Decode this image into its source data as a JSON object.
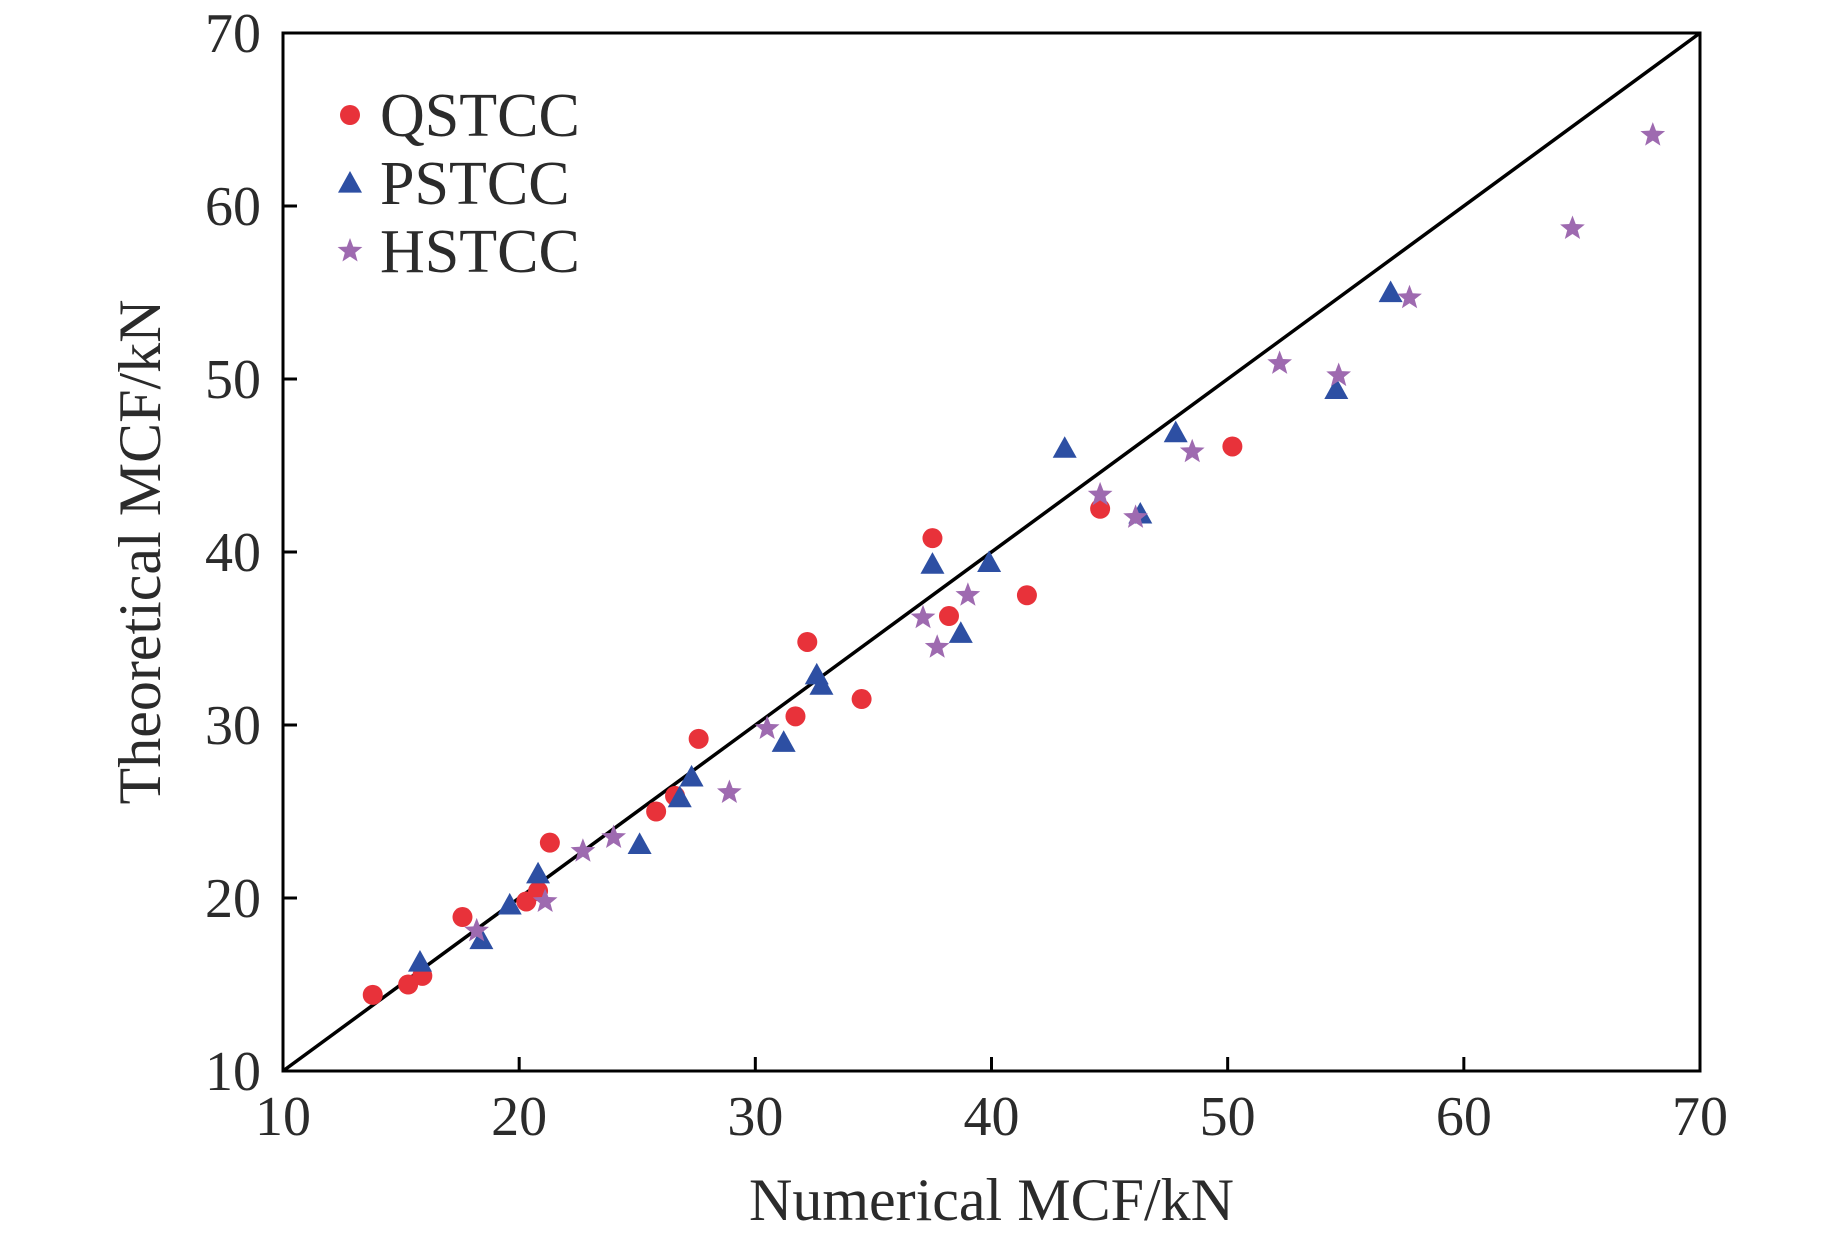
{
  "chart_data": {
    "type": "scatter",
    "title": "",
    "xlabel": "Numerical MCF/kN",
    "ylabel": "Theoretical MCF/kN",
    "xlim": [
      10,
      70
    ],
    "ylim": [
      10,
      70
    ],
    "xticks": [
      10,
      20,
      30,
      40,
      50,
      60,
      70
    ],
    "yticks": [
      10,
      20,
      30,
      40,
      50,
      60,
      70
    ],
    "grid": false,
    "legend_position": "top-left",
    "reference_line": {
      "x": [
        10,
        70
      ],
      "y": [
        10,
        70
      ],
      "color": "#000000"
    },
    "series": [
      {
        "name": "QSTCC",
        "marker": "circle",
        "color": "#e8323a",
        "points": [
          [
            13.8,
            14.4
          ],
          [
            15.3,
            15.0
          ],
          [
            15.9,
            15.5
          ],
          [
            17.6,
            18.9
          ],
          [
            20.3,
            19.8
          ],
          [
            20.8,
            20.4
          ],
          [
            21.3,
            23.2
          ],
          [
            25.8,
            25.0
          ],
          [
            26.6,
            25.9
          ],
          [
            27.6,
            29.2
          ],
          [
            31.7,
            30.5
          ],
          [
            32.2,
            34.8
          ],
          [
            34.5,
            31.5
          ],
          [
            37.5,
            40.8
          ],
          [
            38.2,
            36.3
          ],
          [
            41.5,
            37.5
          ],
          [
            44.6,
            42.5
          ],
          [
            50.2,
            46.1
          ]
        ]
      },
      {
        "name": "PSTCC",
        "marker": "triangle",
        "color": "#2d4fa3",
        "points": [
          [
            15.8,
            16.3
          ],
          [
            18.4,
            17.6
          ],
          [
            19.6,
            19.6
          ],
          [
            20.8,
            21.4
          ],
          [
            25.1,
            23.1
          ],
          [
            26.8,
            25.8
          ],
          [
            27.3,
            27.0
          ],
          [
            31.2,
            29.0
          ],
          [
            32.6,
            32.9
          ],
          [
            32.8,
            32.3
          ],
          [
            37.5,
            39.3
          ],
          [
            38.7,
            35.3
          ],
          [
            39.9,
            39.4
          ],
          [
            43.1,
            46.0
          ],
          [
            46.3,
            42.2
          ],
          [
            47.8,
            46.9
          ],
          [
            54.6,
            49.4
          ],
          [
            56.9,
            55.0
          ]
        ]
      },
      {
        "name": "HSTCC",
        "marker": "star",
        "color": "#9e6ab0",
        "points": [
          [
            18.2,
            18.1
          ],
          [
            21.1,
            19.8
          ],
          [
            22.7,
            22.7
          ],
          [
            24.0,
            23.5
          ],
          [
            28.9,
            26.1
          ],
          [
            30.5,
            29.8
          ],
          [
            37.1,
            36.2
          ],
          [
            37.7,
            34.5
          ],
          [
            39.0,
            37.5
          ],
          [
            44.6,
            43.3
          ],
          [
            46.1,
            42.0
          ],
          [
            48.5,
            45.8
          ],
          [
            52.2,
            50.9
          ],
          [
            54.7,
            50.2
          ],
          [
            57.7,
            54.7
          ],
          [
            64.6,
            58.7
          ],
          [
            68.0,
            64.1
          ]
        ]
      }
    ]
  }
}
